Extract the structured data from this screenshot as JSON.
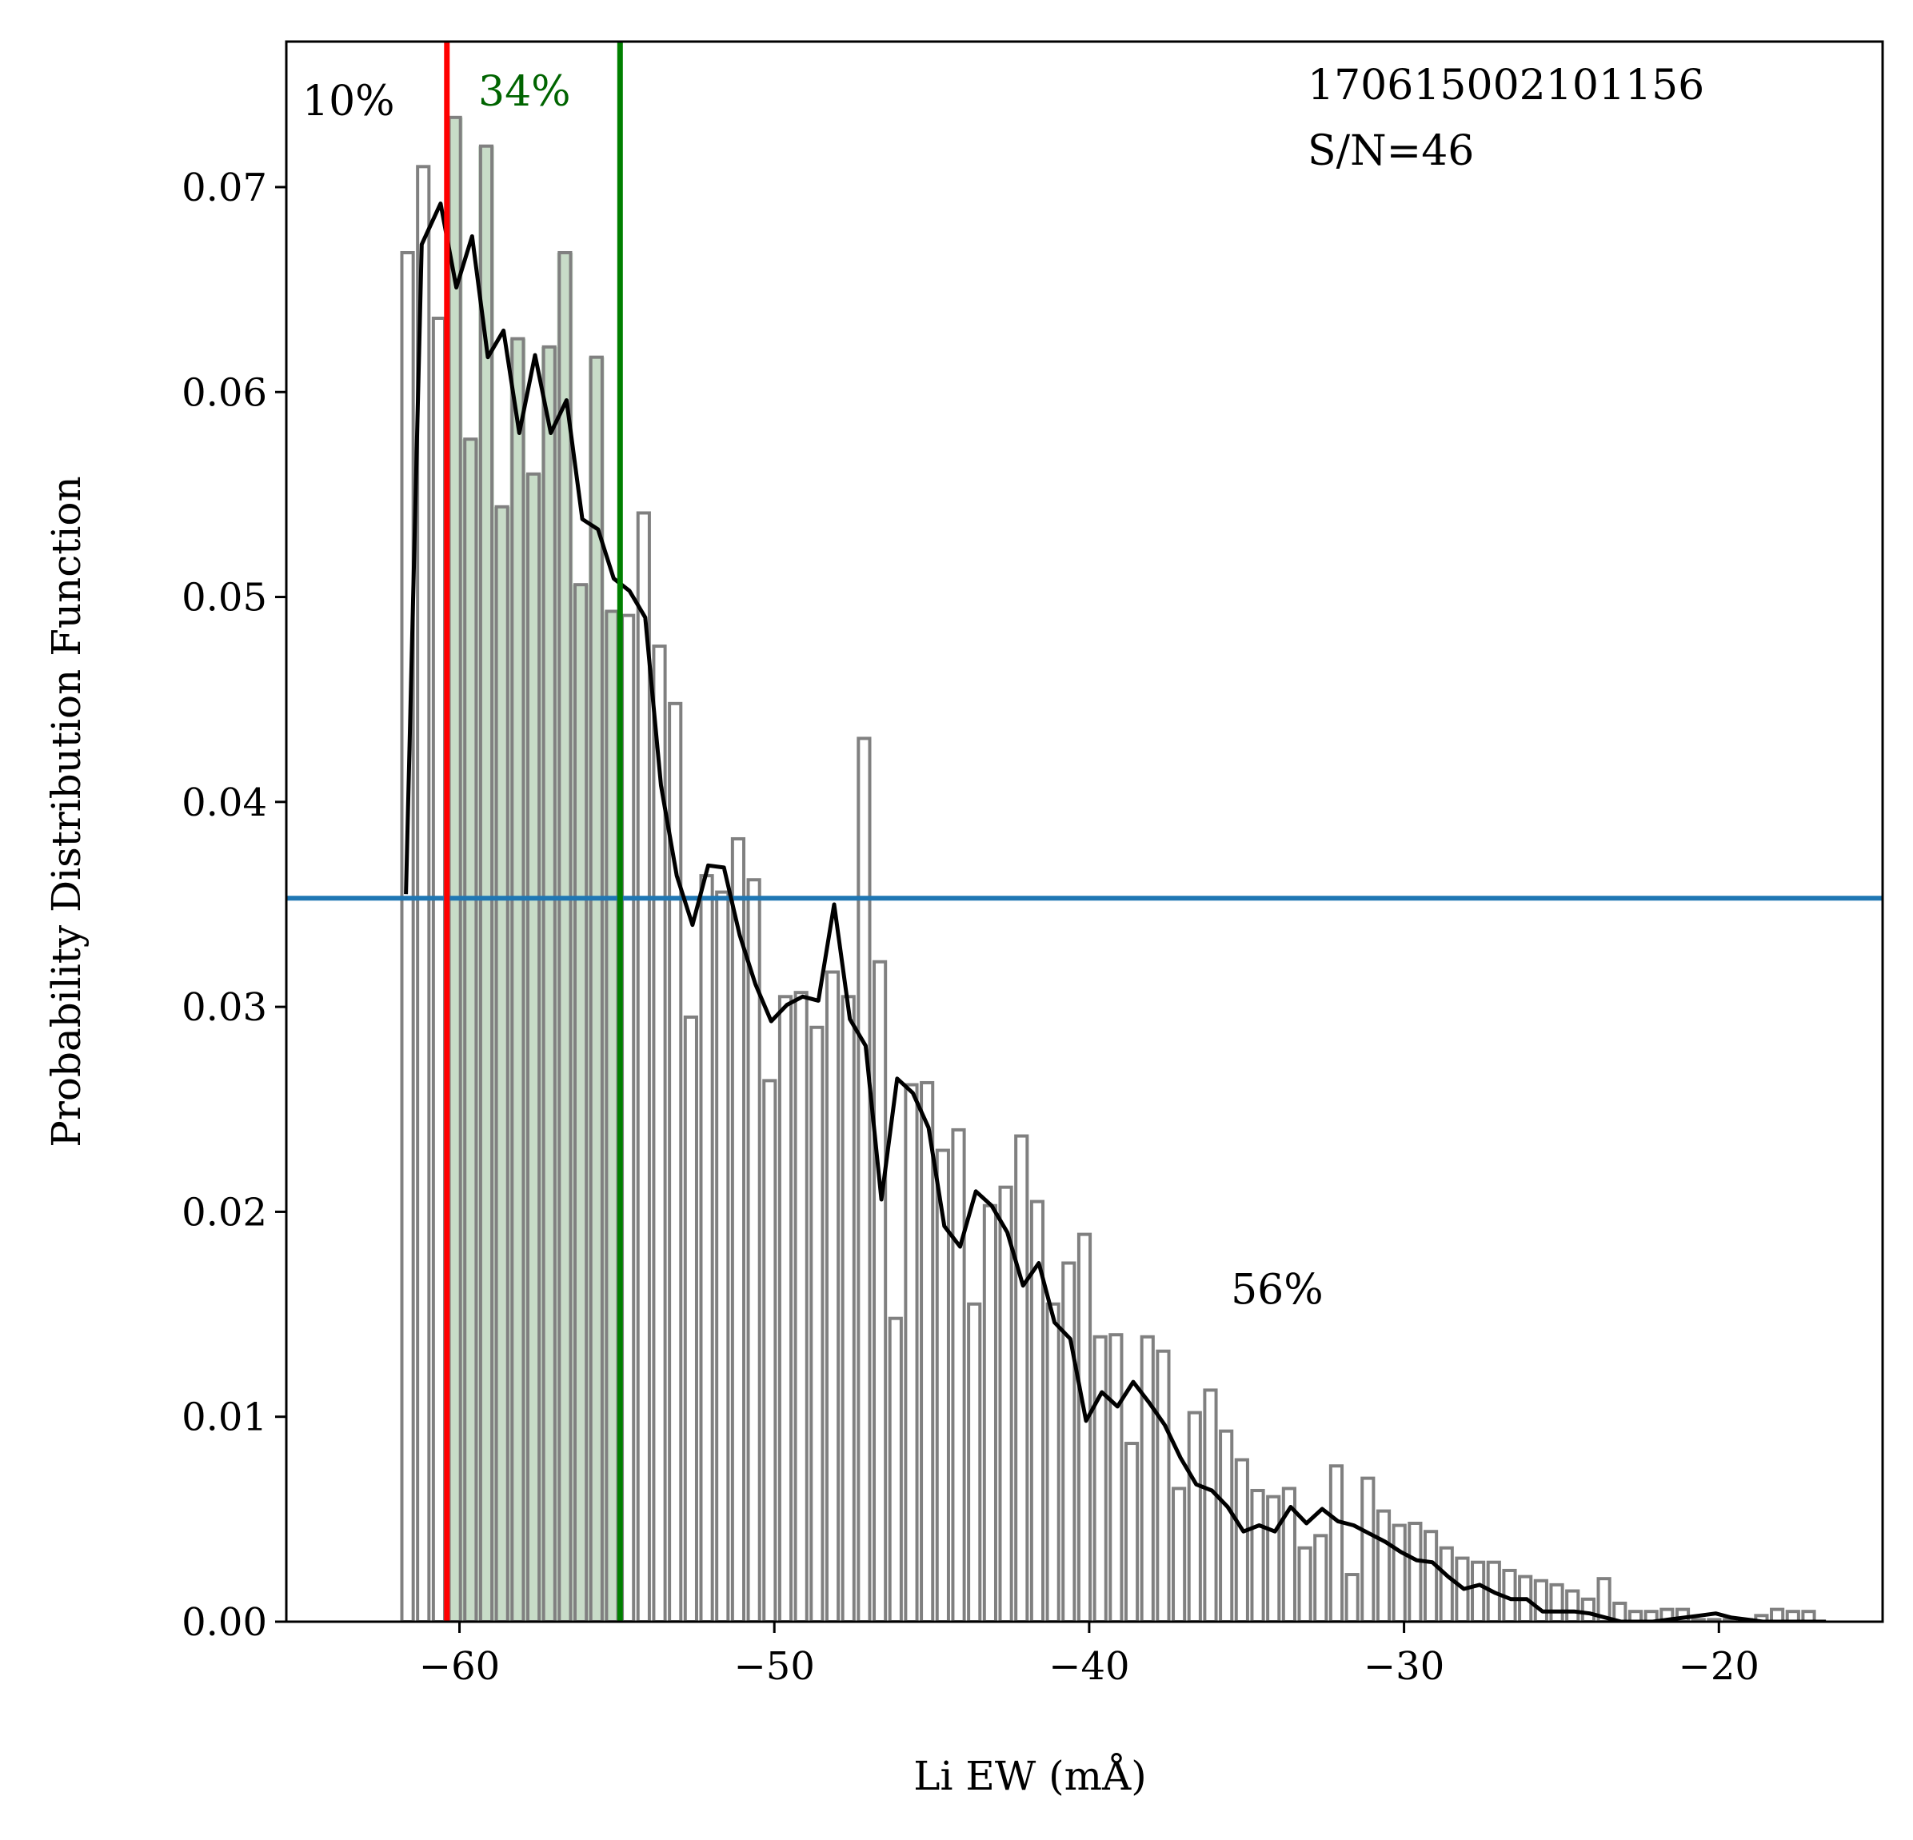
{
  "chart_data": {
    "type": "bar",
    "xlabel": "Li EW (mÅ)",
    "ylabel": "Probability Distribution Function",
    "xlim": [
      -65.5,
      -14.8
    ],
    "ylim": [
      0,
      0.0771
    ],
    "x_ticks": [
      -60,
      -50,
      -40,
      -30,
      -20
    ],
    "x_tick_labels": [
      "−60",
      "−50",
      "−40",
      "−30",
      "−20"
    ],
    "y_ticks": [
      0,
      0.01,
      0.02,
      0.03,
      0.04,
      0.05,
      0.06,
      0.07
    ],
    "y_tick_labels": [
      "0.00",
      "0.01",
      "0.02",
      "0.03",
      "0.04",
      "0.05",
      "0.06",
      "0.07"
    ],
    "histogram": {
      "bin_edges": [
        -61.9,
        -61.4,
        -60.9,
        -60.4,
        -59.9,
        -59.4,
        -58.9,
        -58.4,
        -57.9,
        -57.4,
        -56.9,
        -56.4,
        -55.9,
        -55.4,
        -54.9,
        -54.4,
        -53.9,
        -53.4,
        -52.9,
        -52.4,
        -51.9,
        -51.4,
        -50.9,
        -50.4,
        -49.9,
        -49.4,
        -48.9,
        -48.4,
        -47.9,
        -47.4,
        -46.9,
        -46.4,
        -45.9,
        -45.4,
        -44.9,
        -44.4,
        -43.9,
        -43.4,
        -42.9,
        -42.4,
        -41.9,
        -41.4,
        -40.9,
        -40.4,
        -39.9,
        -39.4,
        -38.9,
        -38.4,
        -37.9,
        -37.4,
        -36.9,
        -36.4,
        -35.9,
        -35.4,
        -34.9,
        -34.4,
        -33.9,
        -33.4,
        -32.9,
        -32.4,
        -31.9,
        -31.4,
        -30.9,
        -30.4,
        -29.9,
        -29.4,
        -28.9,
        -28.4,
        -27.9,
        -27.4,
        -26.9,
        -26.4,
        -25.9,
        -25.4,
        -24.9,
        -24.4,
        -23.9,
        -23.4,
        -22.9,
        -22.4,
        -21.9,
        -21.4,
        -20.9,
        -20.4,
        -19.9,
        -19.4,
        -18.9,
        -18.4,
        -17.9,
        -17.4,
        -16.9
      ],
      "values": [
        0.0668,
        0.071,
        0.0636,
        0.0734,
        0.0577,
        0.072,
        0.0544,
        0.0626,
        0.056,
        0.0622,
        0.0668,
        0.0506,
        0.0617,
        0.0493,
        0.0491,
        0.0541,
        0.0476,
        0.0448,
        0.0295,
        0.0364,
        0.0356,
        0.0382,
        0.0362,
        0.0264,
        0.0305,
        0.0307,
        0.029,
        0.0317,
        0.0305,
        0.0431,
        0.0322,
        0.0148,
        0.0262,
        0.0263,
        0.023,
        0.024,
        0.0155,
        0.0203,
        0.0212,
        0.0237,
        0.0205,
        0.0155,
        0.0175,
        0.0189,
        0.0139,
        0.014,
        0.0087,
        0.0139,
        0.0132,
        0.0065,
        0.0102,
        0.0113,
        0.0093,
        0.0079,
        0.0064,
        0.0061,
        0.0065,
        0.0036,
        0.0042,
        0.0076,
        0.0023,
        0.007,
        0.0054,
        0.0047,
        0.0048,
        0.0044,
        0.0036,
        0.0031,
        0.0029,
        0.0029,
        0.0025,
        0.0022,
        0.002,
        0.0018,
        0.0015,
        0.0011,
        0.0021,
        0.0009,
        0.0005,
        0.0005,
        0.0006,
        0.0006,
        0.0001,
        0.0001,
        0.0001,
        0.0001,
        0.0003,
        0.0006,
        0.0005,
        0.0005
      ],
      "shaded_range": [
        -60.4,
        -54.9
      ]
    },
    "kde": {
      "x": [
        -61.7,
        -61.2,
        -60.6,
        -60.1,
        -59.6,
        -59.1,
        -58.6,
        -58.1,
        -57.6,
        -57.1,
        -56.6,
        -56.1,
        -55.6,
        -55.1,
        -54.6,
        -54.1,
        -53.6,
        -53.1,
        -52.6,
        -52.1,
        -51.6,
        -51.1,
        -50.6,
        -50.1,
        -49.6,
        -49.1,
        -48.6,
        -48.1,
        -47.6,
        -47.1,
        -46.6,
        -46.1,
        -45.6,
        -45.1,
        -44.6,
        -44.1,
        -43.6,
        -43.1,
        -42.6,
        -42.1,
        -41.6,
        -41.1,
        -40.6,
        -40.1,
        -39.6,
        -39.1,
        -38.6,
        -38.1,
        -37.6,
        -37.1,
        -36.6,
        -36.1,
        -35.6,
        -35.1,
        -34.6,
        -34.1,
        -33.6,
        -33.1,
        -32.6,
        -32.1,
        -31.6,
        -31.1,
        -30.6,
        -30.1,
        -29.6,
        -29.1,
        -28.6,
        -28.1,
        -27.6,
        -27.1,
        -26.6,
        -26.1,
        -25.6,
        -25.1,
        -24.6,
        -24.1,
        -23.6,
        -23.1,
        -22.6,
        -22.1,
        -21.6,
        -21.1,
        -20.6,
        -20.1,
        -19.6,
        -19.1,
        -18.6,
        -18.1,
        -17.6,
        -17.1,
        -16.6
      ],
      "y": [
        0.0355,
        0.0672,
        0.0692,
        0.0651,
        0.0676,
        0.0617,
        0.063,
        0.058,
        0.0618,
        0.058,
        0.0596,
        0.0538,
        0.0533,
        0.0509,
        0.0503,
        0.049,
        0.0408,
        0.0364,
        0.034,
        0.0369,
        0.0368,
        0.0335,
        0.0311,
        0.0293,
        0.0301,
        0.0305,
        0.0303,
        0.035,
        0.0294,
        0.0281,
        0.0206,
        0.0265,
        0.0258,
        0.0241,
        0.0193,
        0.0183,
        0.021,
        0.0203,
        0.019,
        0.0164,
        0.0175,
        0.0146,
        0.0138,
        0.0098,
        0.0112,
        0.0105,
        0.0117,
        0.0107,
        0.0096,
        0.008,
        0.0067,
        0.0064,
        0.0056,
        0.0044,
        0.0047,
        0.0044,
        0.0056,
        0.0048,
        0.0055,
        0.0049,
        0.0047,
        0.0043,
        0.0039,
        0.0034,
        0.003,
        0.0029,
        0.0022,
        0.0016,
        0.0018,
        0.0014,
        0.0011,
        0.0011,
        0.0005,
        0.0005,
        0.0005,
        0.0004,
        0.0002,
        0.0,
        0.0,
        0.0,
        0.0001,
        0.0002,
        0.0003,
        0.0004,
        0.0002,
        0.0001,
        0.0,
        0.0,
        0.0,
        0.0,
        0.0
      ]
    },
    "lines": {
      "hline_y": 0.0353,
      "vline_red_x": -60.4,
      "vline_green_x": -54.9
    },
    "annotations": {
      "left_pct": "10%",
      "middle_pct": "34%",
      "right_pct": "56%",
      "right_pct_pos": [
        -35.5,
        0.0155
      ],
      "star_id": "170615002101156",
      "snr": "S/N=46"
    },
    "colors": {
      "bar_edge": "#808080",
      "shade": "#c8dcc8",
      "kde": "#000000",
      "hline": "#1f77b4",
      "vline_red": "#ff0000",
      "vline_green": "#008000",
      "middle_pct_text": "#006400"
    }
  }
}
